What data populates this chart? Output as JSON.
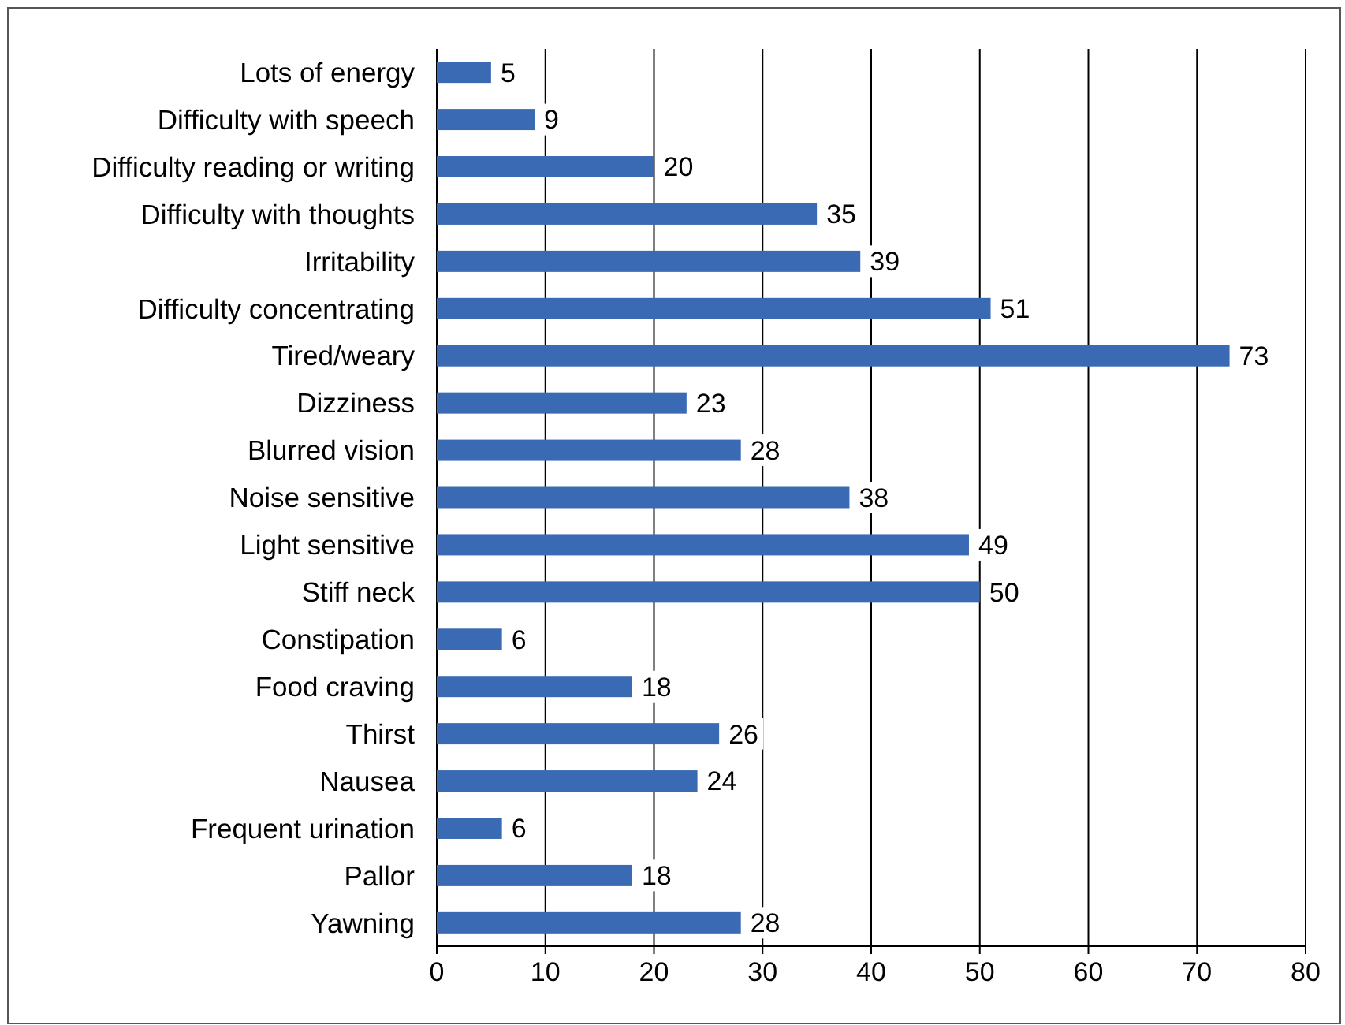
{
  "chart_data": {
    "type": "bar",
    "orientation": "horizontal",
    "categories": [
      "Lots of energy",
      "Difficulty with speech",
      "Difficulty reading or writing",
      "Difficulty with thoughts",
      "Irritability",
      "Difficulty concentrating",
      "Tired/weary",
      "Dizziness",
      "Blurred vision",
      "Noise sensitive",
      "Light sensitive",
      "Stiff neck",
      "Constipation",
      "Food craving",
      "Thirst",
      "Nausea",
      "Frequent urination",
      "Pallor",
      "Yawning"
    ],
    "values": [
      5,
      9,
      20,
      35,
      39,
      51,
      73,
      23,
      28,
      38,
      49,
      50,
      6,
      18,
      26,
      24,
      6,
      18,
      28
    ],
    "color": "#3a6ab4",
    "xlim": [
      0,
      80
    ],
    "xticks": [
      0,
      10,
      20,
      30,
      40,
      50,
      60,
      70,
      80
    ],
    "grid": "x",
    "data_labels": true
  }
}
